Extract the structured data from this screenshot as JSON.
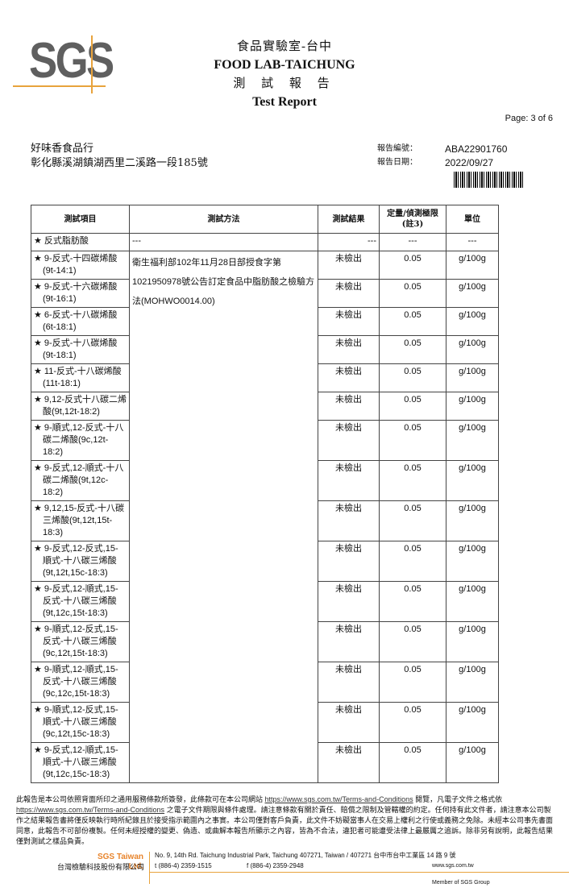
{
  "header": {
    "logo": "SGS",
    "lab_zh": "食品實驗室-台中",
    "lab_en": "FOOD LAB-TAICHUNG",
    "report_zh": "測 試 報 告",
    "report_en": "Test Report",
    "page": "Page: 3 of 6"
  },
  "customer": {
    "name": "好味香食品行",
    "address": "彰化縣溪湖鎮湖西里二溪路一段185號"
  },
  "report": {
    "no_label": "報告編號：",
    "no": "ABA22901760",
    "date_label": "報告日期：",
    "date": "2022/09/27"
  },
  "table": {
    "headers": [
      "測試項目",
      "測試方法",
      "測試結果",
      "定量/偵測極限(註3)",
      "單位"
    ],
    "method": "衛生福利部102年11月28日部授食字第1021950978號公告訂定食品中脂肪酸之檢驗方法(MOHWO0014.00)",
    "first_row": {
      "item": "★ 反式脂肪酸",
      "method": "---",
      "result": "---",
      "limit": "---",
      "unit": "---"
    },
    "rows": [
      {
        "item": "★ 9-反式-十四碳烯酸(9t-14:1)",
        "result": "未檢出",
        "limit": "0.05",
        "unit": "g/100g"
      },
      {
        "item": "★ 9-反式-十六碳烯酸(9t-16:1)",
        "result": "未檢出",
        "limit": "0.05",
        "unit": "g/100g"
      },
      {
        "item": "★ 6-反式-十八碳烯酸(6t-18:1)",
        "result": "未檢出",
        "limit": "0.05",
        "unit": "g/100g"
      },
      {
        "item": "★ 9-反式-十八碳烯酸(9t-18:1)",
        "result": "未檢出",
        "limit": "0.05",
        "unit": "g/100g"
      },
      {
        "item": "★ 11-反式-十八碳烯酸(11t-18:1)",
        "result": "未檢出",
        "limit": "0.05",
        "unit": "g/100g"
      },
      {
        "item": "★ 9,12-反式十八碳二烯酸(9t,12t-18:2)",
        "result": "未檢出",
        "limit": "0.05",
        "unit": "g/100g"
      },
      {
        "item": "★ 9-順式,12-反式-十八碳二烯酸(9c,12t-18:2)",
        "result": "未檢出",
        "limit": "0.05",
        "unit": "g/100g"
      },
      {
        "item": "★ 9-反式,12-順式-十八碳二烯酸(9t,12c-18:2)",
        "result": "未檢出",
        "limit": "0.05",
        "unit": "g/100g"
      },
      {
        "item": "★ 9,12,15-反式-十八碳三烯酸(9t,12t,15t-18:3)",
        "result": "未檢出",
        "limit": "0.05",
        "unit": "g/100g"
      },
      {
        "item": "★ 9-反式,12-反式,15-順式-十八碳三烯酸(9t,12t,15c-18:3)",
        "result": "未檢出",
        "limit": "0.05",
        "unit": "g/100g"
      },
      {
        "item": "★ 9-反式,12-順式,15-反式-十八碳三烯酸(9t,12c,15t-18:3)",
        "result": "未檢出",
        "limit": "0.05",
        "unit": "g/100g"
      },
      {
        "item": "★ 9-順式,12-反式,15-反式-十八碳三烯酸(9c,12t,15t-18:3)",
        "result": "未檢出",
        "limit": "0.05",
        "unit": "g/100g"
      },
      {
        "item": "★ 9-順式,12-順式,15-反式-十八碳三烯酸(9c,12c,15t-18:3)",
        "result": "未檢出",
        "limit": "0.05",
        "unit": "g/100g"
      },
      {
        "item": "★ 9-順式,12-反式,15-順式-十八碳三烯酸(9c,12t,15c-18:3)",
        "result": "未檢出",
        "limit": "0.05",
        "unit": "g/100g"
      },
      {
        "item": "★ 9-反式,12-順式,15-順式-十八碳三烯酸(9t,12c,15c-18:3)",
        "result": "未檢出",
        "limit": "0.05",
        "unit": "g/100g"
      }
    ]
  },
  "disclaimer": {
    "p1": "此報告是本公司依照背面所印之通用服務條款所簽發，此條款可在本公司網站",
    "link1": "https://www.sgs.com.tw/Terms-and-Conditions",
    "p2": "閱覽，凡電子文件之格式依",
    "link2": "https://www.sgs.com.tw/Terms-and-Conditions",
    "p3": "之電子文件期限與條件處理。請注意條款有關於責任、賠償之限制及管轄權的約定。任何持有此文件者，請注意本公司製作之結果報告書將僅反映執行時所紀錄且於接受指示範圍內之事實。本公司僅對客戶負責，此文件不妨礙當事人在交易上權利之行使或義務之免除。未經本公司事先書面同意，此報告不可部份複製。任何未經授權的變更、偽造、或曲解本報告所顯示之內容，皆為不合法，違犯者可能遭受法律上最嚴厲之追訴。除非另有說明，此報告結果僅對測試之樣品負責。"
  },
  "footer": {
    "company_en": "SGS Taiwan Ltd.",
    "company_zh": "台灣檢驗科技股份有限公司",
    "address": "No. 9, 14th Rd. Taichung Industrial Park, Taichung 407271, Taiwan / 407271 台中市台中工業區 14 路 9 號",
    "tel": "t (886-4) 2359-1515",
    "fax": "f (886-4) 2359-2948",
    "web": "www.sgs.com.tw",
    "member": "Member of SGS Group"
  },
  "colors": {
    "accent": "#e8a33c",
    "logo_gray": "#5f5f5f"
  }
}
